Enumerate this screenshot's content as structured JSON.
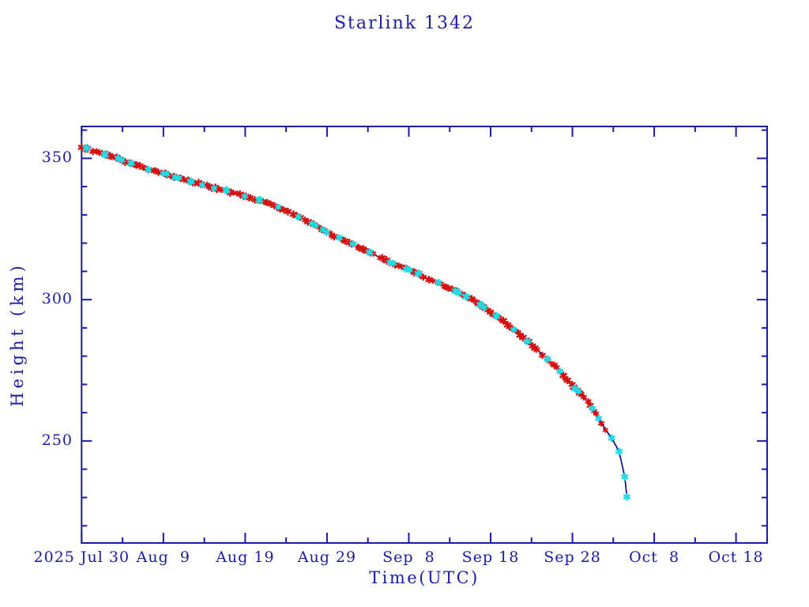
{
  "colors": {
    "axis": "#1b1ba6",
    "line": "#00008b",
    "red_marker": "#d41010",
    "cyan_marker": "#1fdde6",
    "background": "#ffffff"
  },
  "chart_data": {
    "type": "line",
    "title": "Starlink 1342",
    "xlabel": "Time(UTC)",
    "ylabel": "Height (km)",
    "x_axis": {
      "epoch_label_start": "2025 Jul 30",
      "major_tick_days": [
        0,
        10,
        20,
        30,
        40,
        50,
        60,
        70,
        80
      ],
      "major_tick_labels": [
        "2025 Jul 30",
        "Aug  9",
        "Aug 19",
        "Aug 29",
        "Sep  8",
        "Sep 18",
        "Sep 28",
        "Oct  8",
        "Oct 18"
      ],
      "minor_tick_days": [
        5,
        15,
        25,
        35,
        45,
        55,
        65,
        75
      ],
      "range_days": [
        0,
        83.9
      ]
    },
    "y_axis": {
      "major_ticks": [
        250,
        300,
        350
      ],
      "minor_ticks": [
        220,
        230,
        240,
        260,
        270,
        280,
        290,
        310,
        320,
        330,
        340,
        360
      ],
      "range_km": [
        213.9,
        361.3
      ]
    },
    "grid": false,
    "legend": false,
    "series": [
      {
        "name": "decay-track",
        "style": "navy line with dense red asterisk markers",
        "marker": "asterisk",
        "points_day_km": [
          [
            0,
            353.8
          ],
          [
            2,
            352.2
          ],
          [
            4,
            350.4
          ],
          [
            6,
            348.3
          ],
          [
            8,
            346.3
          ],
          [
            10,
            344.8
          ],
          [
            12,
            342.9
          ],
          [
            14,
            341.3
          ],
          [
            16,
            339.8
          ],
          [
            18,
            338.2
          ],
          [
            20,
            336.6
          ],
          [
            22,
            334.9
          ],
          [
            24,
            332.7
          ],
          [
            26,
            330.2
          ],
          [
            28,
            327.3
          ],
          [
            30,
            323.8
          ],
          [
            32,
            321.0
          ],
          [
            34,
            318.4
          ],
          [
            36,
            315.6
          ],
          [
            38,
            312.9
          ],
          [
            40,
            310.6
          ],
          [
            42,
            308.0
          ],
          [
            44,
            305.3
          ],
          [
            46,
            302.6
          ],
          [
            48,
            299.8
          ],
          [
            49,
            297.7
          ],
          [
            50,
            295.5
          ],
          [
            52,
            291.3
          ],
          [
            54,
            286.7
          ],
          [
            56,
            281.5
          ],
          [
            58,
            276.0
          ],
          [
            60,
            269.5
          ],
          [
            61,
            266.8
          ],
          [
            62,
            263.5
          ],
          [
            63,
            258.9
          ],
          [
            64,
            254.2
          ],
          [
            64.8,
            251.0
          ],
          [
            65.7,
            246.3
          ],
          [
            66.4,
            237.3
          ],
          [
            66.65,
            230.2
          ]
        ],
        "red_marker_last_day": 64.0
      },
      {
        "name": "sparse-samples",
        "style": "cyan asterisk markers scattered along track",
        "marker": "asterisk",
        "regular_step_days": 1.9,
        "tail_days": [
          63.2,
          64.8,
          65.7,
          66.4,
          66.65
        ]
      }
    ],
    "notes": "Orbital decay curve: ~354 km on 2025 Jul 30 falling to ~230 km around Oct 4-5"
  }
}
